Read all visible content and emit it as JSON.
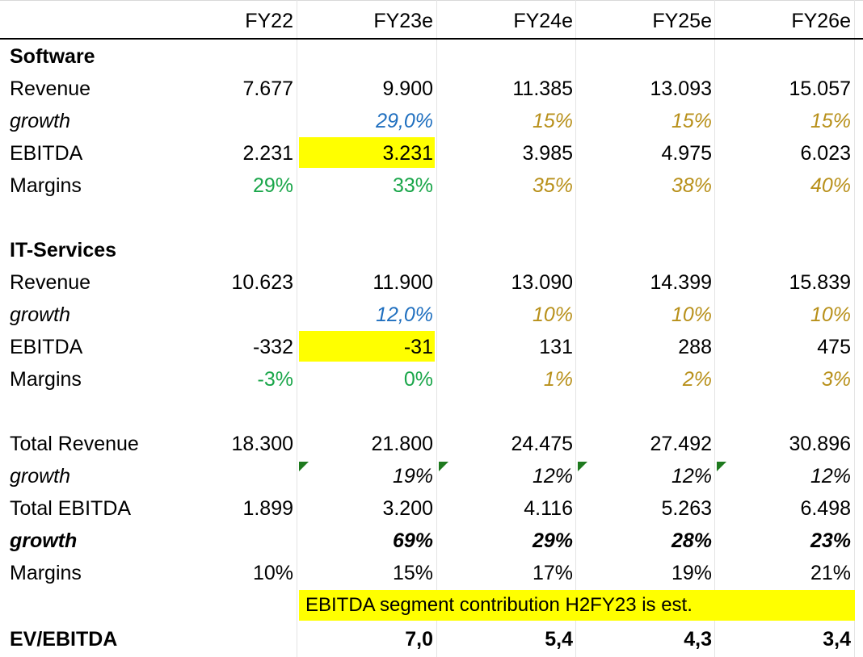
{
  "header": {
    "columns": [
      "FY22",
      "FY23e",
      "FY24e",
      "FY25e",
      "FY26e"
    ]
  },
  "rows": [
    {
      "label": "Software",
      "values": [
        "",
        "",
        "",
        "",
        ""
      ]
    },
    {
      "label": "Revenue",
      "values": [
        "7.677",
        "9.900",
        "11.385",
        "13.093",
        "15.057"
      ]
    },
    {
      "label": "growth",
      "values": [
        "",
        "29,0%",
        "15%",
        "15%",
        "15%"
      ]
    },
    {
      "label": "EBITDA",
      "values": [
        "2.231",
        "3.231",
        "3.985",
        "4.975",
        "6.023"
      ]
    },
    {
      "label": "Margins",
      "values": [
        "29%",
        "33%",
        "35%",
        "38%",
        "40%"
      ]
    },
    {
      "label": "",
      "values": [
        "",
        "",
        "",
        "",
        ""
      ]
    },
    {
      "label": "IT-Services",
      "values": [
        "",
        "",
        "",
        "",
        ""
      ]
    },
    {
      "label": "Revenue",
      "values": [
        "10.623",
        "11.900",
        "13.090",
        "14.399",
        "15.839"
      ]
    },
    {
      "label": "growth",
      "values": [
        "",
        "12,0%",
        "10%",
        "10%",
        "10%"
      ]
    },
    {
      "label": "EBITDA",
      "values": [
        "-332",
        "-31",
        "131",
        "288",
        "475"
      ]
    },
    {
      "label": "Margins",
      "values": [
        "-3%",
        "0%",
        "1%",
        "2%",
        "3%"
      ]
    },
    {
      "label": "",
      "values": [
        "",
        "",
        "",
        "",
        ""
      ]
    },
    {
      "label": "Total Revenue",
      "values": [
        "18.300",
        "21.800",
        "24.475",
        "27.492",
        "30.896"
      ]
    },
    {
      "label": "growth",
      "values": [
        "",
        "19%",
        "12%",
        "12%",
        "12%"
      ]
    },
    {
      "label": "Total EBITDA",
      "values": [
        "1.899",
        "3.200",
        "4.116",
        "5.263",
        "6.498"
      ]
    },
    {
      "label": "growth",
      "values": [
        "",
        "69%",
        "29%",
        "28%",
        "23%"
      ]
    },
    {
      "label": "Margins",
      "values": [
        "10%",
        "15%",
        "17%",
        "19%",
        "21%"
      ]
    },
    {
      "label": "",
      "values": [
        "",
        "",
        "",
        "",
        ""
      ]
    },
    {
      "label": "EV/EBITDA",
      "values": [
        "",
        "7,0",
        "5,4",
        "4,3",
        "3,4"
      ]
    }
  ],
  "note": "EBITDA segment contribution H2FY23 is est.",
  "colors": {
    "highlight": "#ffff00",
    "blue_text": "#1f6fbf",
    "gold_text": "#b8901a",
    "green_text": "#1aa64a",
    "comment_flag": "#1e7a1e"
  }
}
